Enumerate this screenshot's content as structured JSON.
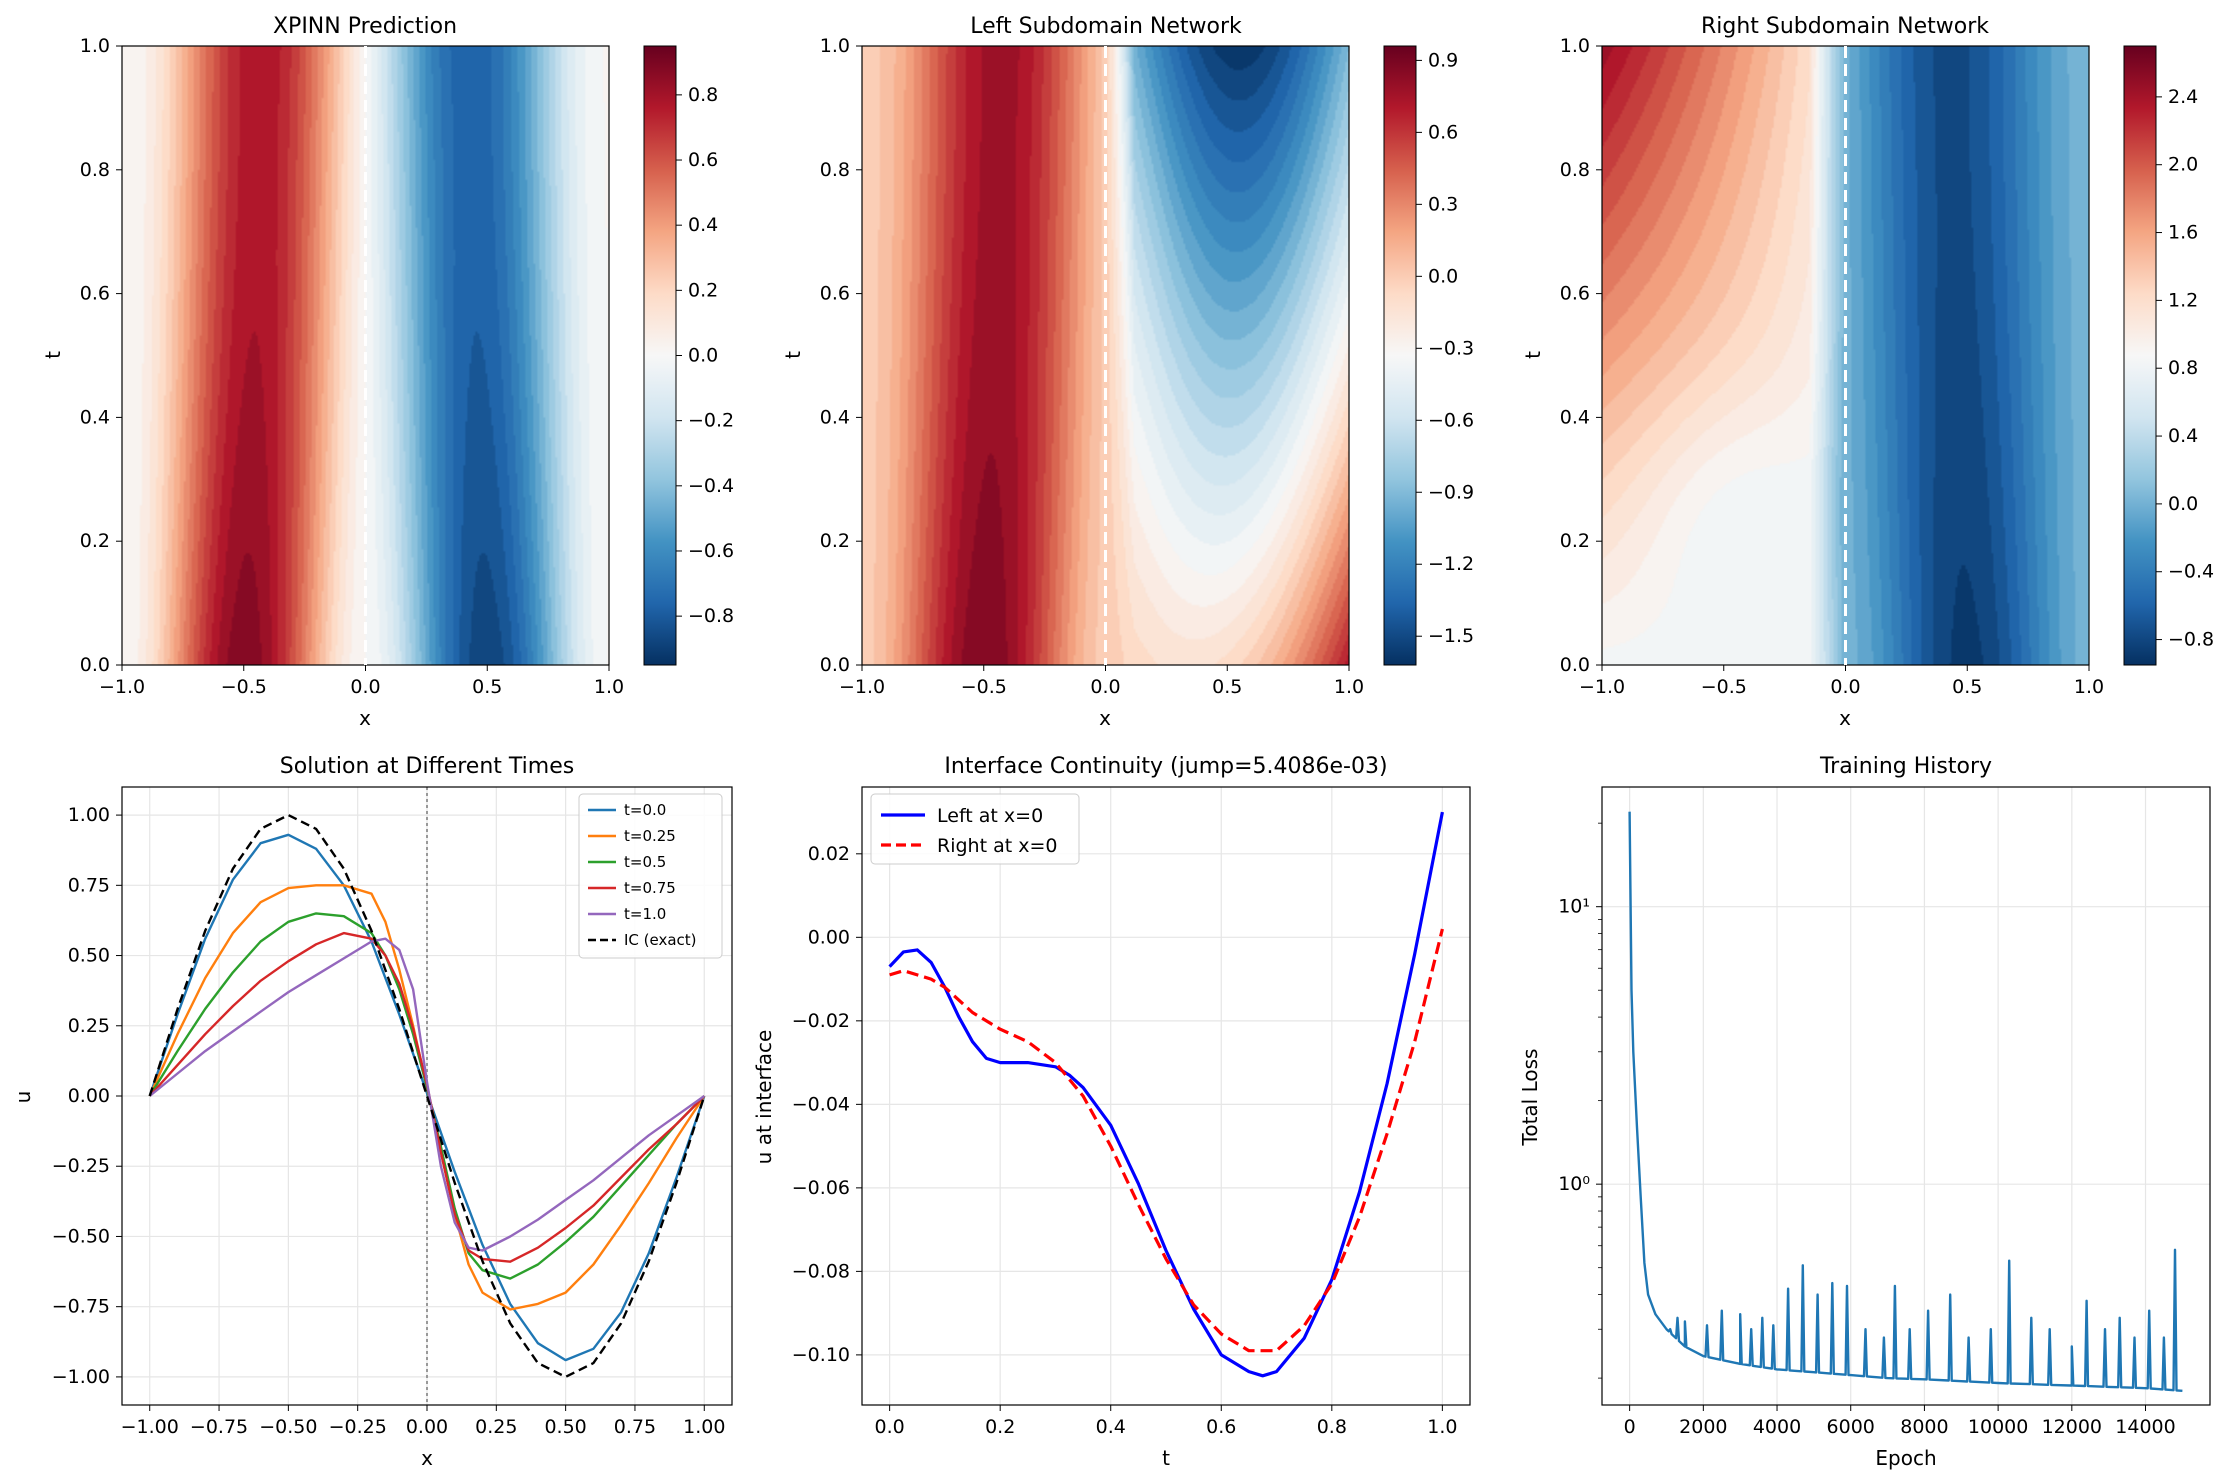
{
  "chart_data": [
    {
      "type": "heatmap",
      "title": "XPINN Prediction",
      "xlabel": "x",
      "ylabel": "t",
      "xlim": [
        -1.0,
        1.0
      ],
      "ylim": [
        0.0,
        1.0
      ],
      "x_ticks": [
        "−1.0",
        "−0.5",
        "0.0",
        "0.5",
        "1.0"
      ],
      "y_ticks": [
        "0.0",
        "0.2",
        "0.4",
        "0.6",
        "0.8",
        "1.0"
      ],
      "colormap": "RdBu_r",
      "color_range": [
        -0.95,
        0.95
      ],
      "colorbar_ticks": [
        -0.8,
        -0.6,
        -0.4,
        -0.2,
        0.0,
        0.2,
        0.4,
        0.6,
        0.8
      ],
      "colorbar_labels": [
        "−0.8",
        "−0.6",
        "−0.4",
        "−0.2",
        "0.0",
        "0.2",
        "0.4",
        "0.6",
        "0.8"
      ],
      "interface_x": 0.0
    },
    {
      "type": "heatmap",
      "title": "Left Subdomain Network",
      "xlabel": "x",
      "ylabel": "t",
      "xlim": [
        -1.0,
        1.0
      ],
      "ylim": [
        0.0,
        1.0
      ],
      "x_ticks": [
        "−1.0",
        "−0.5",
        "0.0",
        "0.5",
        "1.0"
      ],
      "y_ticks": [
        "0.0",
        "0.2",
        "0.4",
        "0.6",
        "0.8",
        "1.0"
      ],
      "colormap": "RdBu_r",
      "color_range": [
        -1.62,
        0.96
      ],
      "colorbar_ticks": [
        -1.5,
        -1.2,
        -0.9,
        -0.6,
        -0.3,
        0.0,
        0.3,
        0.6,
        0.9
      ],
      "colorbar_labels": [
        "−1.5",
        "−1.2",
        "−0.9",
        "−0.6",
        "−0.3",
        "0.0",
        "0.3",
        "0.6",
        "0.9"
      ],
      "interface_x": 0.0
    },
    {
      "type": "heatmap",
      "title": "Right Subdomain Network",
      "xlabel": "x",
      "ylabel": "t",
      "xlim": [
        -1.0,
        1.0
      ],
      "ylim": [
        0.0,
        1.0
      ],
      "x_ticks": [
        "−1.0",
        "−0.5",
        "0.0",
        "0.5",
        "1.0"
      ],
      "y_ticks": [
        "0.0",
        "0.2",
        "0.4",
        "0.6",
        "0.8",
        "1.0"
      ],
      "colormap": "RdBu_r",
      "color_range": [
        -0.95,
        2.7
      ],
      "colorbar_ticks": [
        -0.8,
        -0.4,
        0.0,
        0.4,
        0.8,
        1.2,
        1.6,
        2.0,
        2.4
      ],
      "colorbar_labels": [
        "−0.8",
        "−0.4",
        "0.0",
        "0.4",
        "0.8",
        "1.2",
        "1.6",
        "2.0",
        "2.4"
      ],
      "interface_x": 0.0
    },
    {
      "type": "line",
      "title": "Solution at Different Times",
      "xlabel": "x",
      "ylabel": "u",
      "xlim": [
        -1.1,
        1.1
      ],
      "ylim": [
        -1.1,
        1.1
      ],
      "x_ticks": [
        -1.0,
        -0.75,
        -0.5,
        -0.25,
        0.0,
        0.25,
        0.5,
        0.75,
        1.0
      ],
      "x_tick_labels": [
        "−1.00",
        "−0.75",
        "−0.50",
        "−0.25",
        "0.00",
        "0.25",
        "0.50",
        "0.75",
        "1.00"
      ],
      "y_ticks": [
        -1.0,
        -0.75,
        -0.5,
        -0.25,
        0.0,
        0.25,
        0.5,
        0.75,
        1.0
      ],
      "y_tick_labels": [
        "−1.00",
        "−0.75",
        "−0.50",
        "−0.25",
        "0.00",
        "0.25",
        "0.50",
        "0.75",
        "1.00"
      ],
      "grid": true,
      "legend": "upper right",
      "vline_x": 0.0,
      "series": [
        {
          "name": "t=0.0",
          "color": "#1f77b4",
          "dash": "solid",
          "x": [
            -1.0,
            -0.9,
            -0.8,
            -0.7,
            -0.6,
            -0.5,
            -0.4,
            -0.3,
            -0.2,
            -0.1,
            0.0,
            0.1,
            0.2,
            0.3,
            0.4,
            0.5,
            0.6,
            0.7,
            0.8,
            0.9,
            1.0
          ],
          "y": [
            0.0,
            0.29,
            0.56,
            0.77,
            0.9,
            0.93,
            0.88,
            0.75,
            0.55,
            0.29,
            0.01,
            -0.27,
            -0.53,
            -0.74,
            -0.88,
            -0.94,
            -0.9,
            -0.77,
            -0.56,
            -0.29,
            0.0
          ]
        },
        {
          "name": "t=0.25",
          "color": "#ff7f0e",
          "dash": "solid",
          "x": [
            -1.0,
            -0.9,
            -0.8,
            -0.7,
            -0.6,
            -0.5,
            -0.4,
            -0.3,
            -0.2,
            -0.15,
            -0.1,
            -0.05,
            0.0,
            0.05,
            0.1,
            0.15,
            0.2,
            0.3,
            0.4,
            0.5,
            0.6,
            0.7,
            0.8,
            0.9,
            1.0
          ],
          "y": [
            0.0,
            0.22,
            0.42,
            0.58,
            0.69,
            0.74,
            0.75,
            0.75,
            0.72,
            0.62,
            0.45,
            0.25,
            0.03,
            -0.2,
            -0.42,
            -0.6,
            -0.7,
            -0.76,
            -0.74,
            -0.7,
            -0.6,
            -0.46,
            -0.31,
            -0.15,
            0.0
          ]
        },
        {
          "name": "t=0.5",
          "color": "#2ca02c",
          "dash": "solid",
          "x": [
            -1.0,
            -0.9,
            -0.8,
            -0.7,
            -0.6,
            -0.5,
            -0.4,
            -0.3,
            -0.2,
            -0.15,
            -0.1,
            -0.05,
            0.0,
            0.05,
            0.1,
            0.15,
            0.2,
            0.3,
            0.4,
            0.5,
            0.6,
            0.7,
            0.8,
            0.9,
            1.0
          ],
          "y": [
            0.0,
            0.16,
            0.31,
            0.44,
            0.55,
            0.62,
            0.65,
            0.64,
            0.58,
            0.5,
            0.38,
            0.22,
            0.03,
            -0.18,
            -0.4,
            -0.56,
            -0.62,
            -0.65,
            -0.6,
            -0.52,
            -0.43,
            -0.32,
            -0.21,
            -0.1,
            0.0
          ]
        },
        {
          "name": "t=0.75",
          "color": "#d62728",
          "dash": "solid",
          "x": [
            -1.0,
            -0.9,
            -0.8,
            -0.7,
            -0.6,
            -0.5,
            -0.4,
            -0.3,
            -0.2,
            -0.15,
            -0.1,
            -0.05,
            0.0,
            0.05,
            0.1,
            0.15,
            0.2,
            0.3,
            0.4,
            0.5,
            0.6,
            0.7,
            0.8,
            0.9,
            1.0
          ],
          "y": [
            0.0,
            0.11,
            0.22,
            0.32,
            0.41,
            0.48,
            0.54,
            0.58,
            0.56,
            0.5,
            0.4,
            0.24,
            0.04,
            -0.2,
            -0.42,
            -0.55,
            -0.58,
            -0.59,
            -0.54,
            -0.47,
            -0.39,
            -0.29,
            -0.19,
            -0.1,
            0.0
          ]
        },
        {
          "name": "t=1.0",
          "color": "#9467bd",
          "dash": "solid",
          "x": [
            -1.0,
            -0.9,
            -0.8,
            -0.7,
            -0.6,
            -0.5,
            -0.4,
            -0.3,
            -0.2,
            -0.15,
            -0.1,
            -0.05,
            0.0,
            0.05,
            0.1,
            0.15,
            0.2,
            0.3,
            0.4,
            0.5,
            0.6,
            0.7,
            0.8,
            0.9,
            1.0
          ],
          "y": [
            0.0,
            0.08,
            0.16,
            0.23,
            0.3,
            0.37,
            0.43,
            0.49,
            0.55,
            0.56,
            0.52,
            0.38,
            0.05,
            -0.25,
            -0.45,
            -0.54,
            -0.55,
            -0.5,
            -0.44,
            -0.37,
            -0.3,
            -0.22,
            -0.14,
            -0.07,
            0.0
          ]
        },
        {
          "name": "IC (exact)",
          "color": "#000000",
          "dash": "dashed",
          "x": [
            -1.0,
            -0.9,
            -0.8,
            -0.7,
            -0.6,
            -0.5,
            -0.4,
            -0.3,
            -0.2,
            -0.1,
            0.0,
            0.1,
            0.2,
            0.3,
            0.4,
            0.5,
            0.6,
            0.7,
            0.8,
            0.9,
            1.0
          ],
          "y": [
            0.0,
            0.309,
            0.588,
            0.809,
            0.951,
            1.0,
            0.951,
            0.809,
            0.588,
            0.309,
            0.0,
            -0.309,
            -0.588,
            -0.809,
            -0.951,
            -1.0,
            -0.951,
            -0.809,
            -0.588,
            -0.309,
            0.0
          ]
        }
      ]
    },
    {
      "type": "line",
      "title": "Interface Continuity (jump=5.4086e-03)",
      "xlabel": "t",
      "ylabel": "u at interface",
      "xlim": [
        -0.05,
        1.05
      ],
      "ylim": [
        -0.112,
        0.036
      ],
      "x_ticks": [
        0.0,
        0.2,
        0.4,
        0.6,
        0.8,
        1.0
      ],
      "x_tick_labels": [
        "0.0",
        "0.2",
        "0.4",
        "0.6",
        "0.8",
        "1.0"
      ],
      "y_ticks": [
        -0.1,
        -0.08,
        -0.06,
        -0.04,
        -0.02,
        0.0,
        0.02
      ],
      "y_tick_labels": [
        "−0.10",
        "−0.08",
        "−0.06",
        "−0.04",
        "−0.02",
        "0.00",
        "0.02"
      ],
      "grid": true,
      "legend": "upper left",
      "series": [
        {
          "name": "Left at x=0",
          "color": "#0000ff",
          "dash": "solid",
          "x": [
            0.0,
            0.025,
            0.05,
            0.075,
            0.1,
            0.125,
            0.15,
            0.175,
            0.2,
            0.25,
            0.3,
            0.325,
            0.35,
            0.4,
            0.45,
            0.5,
            0.55,
            0.6,
            0.65,
            0.675,
            0.7,
            0.75,
            0.8,
            0.85,
            0.9,
            0.95,
            1.0
          ],
          "y": [
            -0.007,
            -0.0035,
            -0.003,
            -0.006,
            -0.012,
            -0.019,
            -0.025,
            -0.029,
            -0.03,
            -0.03,
            -0.031,
            -0.033,
            -0.036,
            -0.045,
            -0.059,
            -0.075,
            -0.089,
            -0.1,
            -0.104,
            -0.105,
            -0.104,
            -0.096,
            -0.082,
            -0.061,
            -0.035,
            -0.004,
            0.03
          ]
        },
        {
          "name": "Right at x=0",
          "color": "#ff0000",
          "dash": "dashed",
          "x": [
            0.0,
            0.025,
            0.05,
            0.075,
            0.1,
            0.15,
            0.2,
            0.25,
            0.3,
            0.35,
            0.4,
            0.45,
            0.5,
            0.55,
            0.6,
            0.65,
            0.7,
            0.75,
            0.8,
            0.85,
            0.9,
            0.95,
            1.0
          ],
          "y": [
            -0.009,
            -0.008,
            -0.009,
            -0.01,
            -0.012,
            -0.018,
            -0.022,
            -0.025,
            -0.03,
            -0.038,
            -0.05,
            -0.064,
            -0.077,
            -0.088,
            -0.095,
            -0.099,
            -0.099,
            -0.093,
            -0.083,
            -0.067,
            -0.047,
            -0.025,
            0.002
          ]
        }
      ]
    },
    {
      "type": "line",
      "title": "Training History",
      "xlabel": "Epoch",
      "ylabel": "Total Loss",
      "xlim": [
        -750,
        15750
      ],
      "ylim": [
        0.16,
        27
      ],
      "yscale": "log",
      "x_ticks": [
        0,
        2000,
        4000,
        6000,
        8000,
        10000,
        12000,
        14000
      ],
      "x_tick_labels": [
        "0",
        "2000",
        "4000",
        "6000",
        "8000",
        "10000",
        "12000",
        "14000"
      ],
      "y_ticks": [
        1,
        10
      ],
      "y_tick_labels": [
        "10⁰",
        "10¹"
      ],
      "grid": true,
      "series": [
        {
          "name": "",
          "color": "#1f77b4",
          "dash": "solid",
          "x": [
            0,
            50,
            100,
            200,
            300,
            400,
            500,
            700,
            1000,
            1500,
            2000,
            3000,
            4000,
            5000,
            6000,
            7000,
            8000,
            9000,
            10000,
            11000,
            12000,
            13000,
            14000,
            15000
          ],
          "y": [
            22,
            5.0,
            3.0,
            1.6,
            0.9,
            0.52,
            0.4,
            0.34,
            0.3,
            0.26,
            0.24,
            0.225,
            0.215,
            0.21,
            0.205,
            0.2,
            0.198,
            0.195,
            0.192,
            0.19,
            0.188,
            0.186,
            0.184,
            0.18
          ],
          "spikes": [
            [
              1100,
              0.3
            ],
            [
              1300,
              0.33
            ],
            [
              1500,
              0.32
            ],
            [
              2100,
              0.31
            ],
            [
              2500,
              0.35
            ],
            [
              3000,
              0.34
            ],
            [
              3300,
              0.3
            ],
            [
              3600,
              0.33
            ],
            [
              3900,
              0.31
            ],
            [
              4300,
              0.42
            ],
            [
              4700,
              0.51
            ],
            [
              5100,
              0.4
            ],
            [
              5500,
              0.44
            ],
            [
              5900,
              0.43
            ],
            [
              6400,
              0.3
            ],
            [
              6900,
              0.28
            ],
            [
              7200,
              0.43
            ],
            [
              7600,
              0.3
            ],
            [
              8100,
              0.35
            ],
            [
              8700,
              0.4
            ],
            [
              9200,
              0.28
            ],
            [
              9800,
              0.3
            ],
            [
              10300,
              0.53
            ],
            [
              10900,
              0.33
            ],
            [
              11400,
              0.3
            ],
            [
              12000,
              0.26
            ],
            [
              12400,
              0.38
            ],
            [
              12900,
              0.3
            ],
            [
              13300,
              0.33
            ],
            [
              13700,
              0.28
            ],
            [
              14100,
              0.35
            ],
            [
              14500,
              0.28
            ],
            [
              14800,
              0.58
            ]
          ]
        }
      ]
    }
  ]
}
